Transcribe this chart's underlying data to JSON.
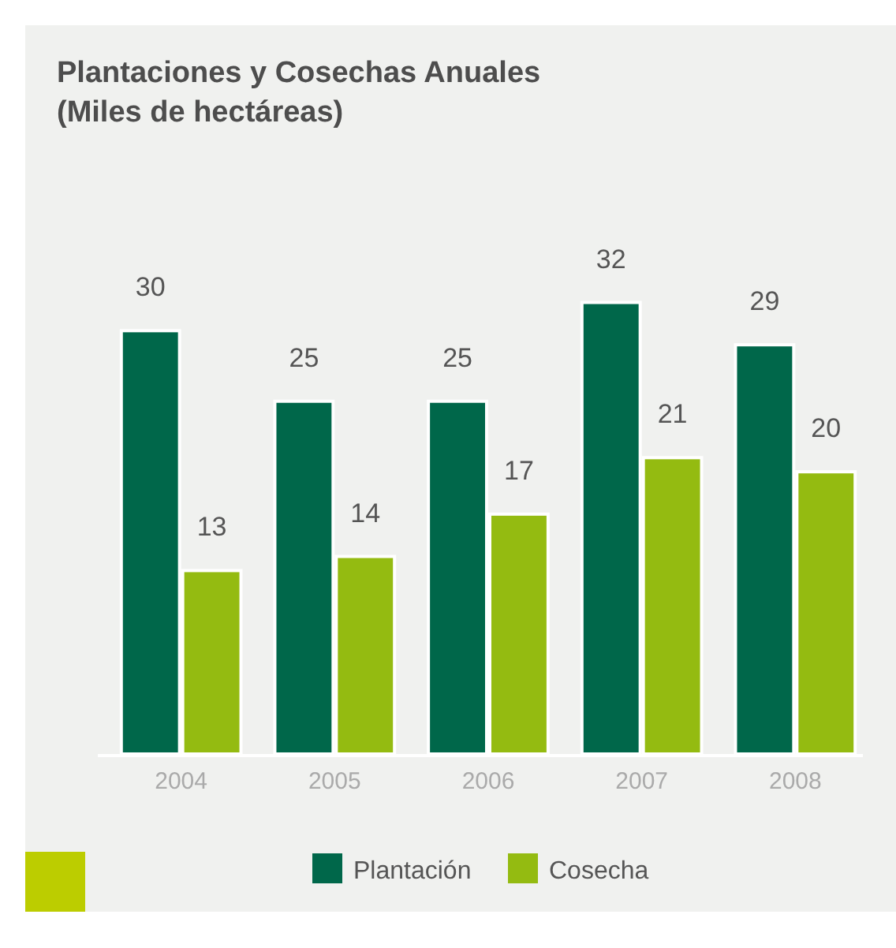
{
  "chart_data": {
    "type": "bar",
    "title": "Plantaciones y Cosechas Anuales",
    "subtitle": "(Miles de hectáreas)",
    "categories": [
      "2004",
      "2005",
      "2006",
      "2007",
      "2008"
    ],
    "series": [
      {
        "name": "Plantación",
        "color": "#00674a",
        "values": [
          30,
          25,
          25,
          32,
          29
        ]
      },
      {
        "name": "Cosecha",
        "color": "#94bb11",
        "values": [
          13,
          14,
          17,
          21,
          20
        ]
      }
    ],
    "data_labels": true,
    "legend": "bottom"
  }
}
